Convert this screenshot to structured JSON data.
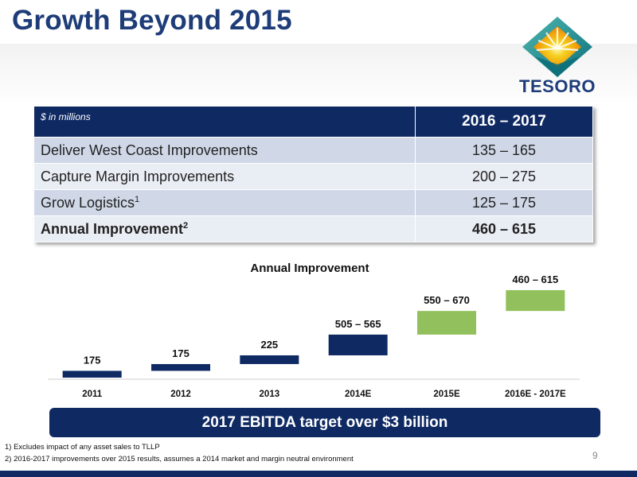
{
  "title": "Growth Beyond 2015",
  "logo": {
    "text": "TESORO"
  },
  "table": {
    "unit_label": "$ in millions",
    "period_header": "2016 – 2017",
    "rows": [
      {
        "label": "Deliver West Coast Improvements",
        "sup": "",
        "value": "135 – 165"
      },
      {
        "label": "Capture Margin Improvements",
        "sup": "",
        "value": "200 – 275"
      },
      {
        "label": "Grow Logistics",
        "sup": "1",
        "value": "125 – 175"
      },
      {
        "label": "Annual Improvement",
        "sup": "2",
        "value": "460 – 615"
      }
    ]
  },
  "chart_data": {
    "type": "bar",
    "title": "Annual Improvement",
    "categories": [
      "2011",
      "2012",
      "2013",
      "2014E",
      "2015E",
      "2016E - 2017E"
    ],
    "data_labels": [
      "175",
      "175",
      "225",
      "505 – 565",
      "550 – 670",
      "460 – 615"
    ],
    "bars": [
      {
        "low": 0,
        "high": 175,
        "color": "#0f2a63"
      },
      {
        "low": 175,
        "high": 350,
        "color": "#0f2a63"
      },
      {
        "low": 350,
        "high": 575,
        "color": "#0f2a63"
      },
      {
        "low": 575,
        "high": 1110,
        "color": "#0f2a63"
      },
      {
        "low": 1110,
        "high": 1720,
        "color": "#92c05c"
      },
      {
        "low": 1720,
        "high": 2257,
        "color": "#92c05c"
      }
    ],
    "ylim": [
      0,
      2400
    ],
    "grid": false,
    "legend": "none"
  },
  "banner": "2017 EBITDA target over $3 billion",
  "footnotes": [
    "1) Excludes impact of any asset sales to TLLP",
    "2) 2016-2017 improvements over 2015 results, assumes a 2014 market and margin neutral environment"
  ],
  "page_number": "9",
  "colors": {
    "navy": "#0f2a63",
    "green": "#92c05c",
    "title_blue": "#1d3c78"
  }
}
